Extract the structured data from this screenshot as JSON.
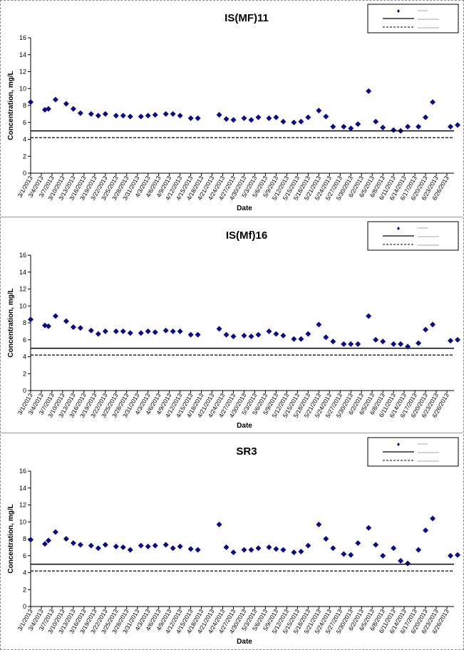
{
  "chart_data": [
    {
      "type": "scatter",
      "title": "IS(MF)11",
      "xlabel": "Date",
      "ylabel": "Concentration, mg/L",
      "ylim": [
        0,
        16
      ],
      "yticks": [
        0,
        2,
        4,
        6,
        8,
        10,
        12,
        14,
        16
      ],
      "grid": false,
      "legend_position": "top-right",
      "xlim": [
        "3/1/2013",
        "6/28/2013"
      ],
      "xtick_labels": [
        "3/1/2013",
        "3/4/2013",
        "3/7/2013",
        "3/10/2013",
        "3/13/2013",
        "3/16/2013",
        "3/19/2013",
        "3/22/2013",
        "3/25/2013",
        "3/28/2013",
        "3/31/2013",
        "4/3/2013",
        "4/6/2013",
        "4/9/2013",
        "4/12/2013",
        "4/15/2013",
        "4/18/2013",
        "4/21/2013",
        "4/24/2013",
        "4/27/2013",
        "4/30/2013",
        "5/3/2013",
        "5/6/2013",
        "5/9/2013",
        "5/12/2013",
        "5/15/2013",
        "5/18/2013",
        "5/21/2013",
        "5/24/2013",
        "5/27/2013",
        "5/30/2013",
        "6/2/2013",
        "6/5/2013",
        "6/8/2013",
        "6/11/2013",
        "6/14/2013",
        "6/17/2013",
        "6/20/2013",
        "6/23/2013",
        "6/26/2013"
      ],
      "series": [
        {
          "kind": "points",
          "marker": "diamond",
          "color": "#0a0a8c",
          "points": [
            [
              "3/1/2013",
              8.4
            ],
            [
              "3/5/2013",
              7.5
            ],
            [
              "3/6/2013",
              7.6
            ],
            [
              "3/8/2013",
              8.7
            ],
            [
              "3/11/2013",
              8.2
            ],
            [
              "3/13/2013",
              7.6
            ],
            [
              "3/15/2013",
              7.1
            ],
            [
              "3/18/2013",
              7.0
            ],
            [
              "3/20/2013",
              6.8
            ],
            [
              "3/22/2013",
              7.0
            ],
            [
              "3/25/2013",
              6.8
            ],
            [
              "3/27/2013",
              6.8
            ],
            [
              "3/29/2013",
              6.7
            ],
            [
              "4/1/2013",
              6.7
            ],
            [
              "4/3/2013",
              6.8
            ],
            [
              "4/5/2013",
              6.9
            ],
            [
              "4/8/2013",
              7.0
            ],
            [
              "4/10/2013",
              7.0
            ],
            [
              "4/12/2013",
              6.8
            ],
            [
              "4/15/2013",
              6.5
            ],
            [
              "4/17/2013",
              6.5
            ],
            [
              "4/23/2013",
              6.9
            ],
            [
              "4/25/2013",
              6.4
            ],
            [
              "4/27/2013",
              6.3
            ],
            [
              "4/30/2013",
              6.5
            ],
            [
              "5/2/2013",
              6.3
            ],
            [
              "5/4/2013",
              6.6
            ],
            [
              "5/7/2013",
              6.5
            ],
            [
              "5/9/2013",
              6.6
            ],
            [
              "5/11/2013",
              6.1
            ],
            [
              "5/14/2013",
              6.0
            ],
            [
              "5/16/2013",
              6.1
            ],
            [
              "5/18/2013",
              6.6
            ],
            [
              "5/21/2013",
              7.4
            ],
            [
              "5/23/2013",
              6.7
            ],
            [
              "5/25/2013",
              5.5
            ],
            [
              "5/28/2013",
              5.5
            ],
            [
              "5/30/2013",
              5.3
            ],
            [
              "6/1/2013",
              5.8
            ],
            [
              "6/4/2013",
              9.7
            ],
            [
              "6/6/2013",
              6.1
            ],
            [
              "6/8/2013",
              5.4
            ],
            [
              "6/11/2013",
              5.1
            ],
            [
              "6/13/2013",
              5.0
            ],
            [
              "6/15/2013",
              5.5
            ],
            [
              "6/18/2013",
              5.5
            ],
            [
              "6/20/2013",
              6.6
            ],
            [
              "6/22/2013",
              8.4
            ],
            [
              "6/27/2013",
              5.5
            ],
            [
              "6/29/2013",
              5.7
            ]
          ]
        },
        {
          "kind": "hline",
          "value": 5.0,
          "style": "solid",
          "color": "#000000"
        },
        {
          "kind": "hline",
          "value": 4.2,
          "style": "dashed",
          "color": "#000000"
        }
      ]
    },
    {
      "type": "scatter",
      "title": "IS(Mf)16",
      "xlabel": "Date",
      "ylabel": "Concentration, mg/L",
      "ylim": [
        0,
        16
      ],
      "yticks": [
        0,
        2,
        4,
        6,
        8,
        10,
        12,
        14,
        16
      ],
      "grid": false,
      "legend_position": "top-right",
      "xlim": [
        "3/1/2013",
        "6/28/2013"
      ],
      "xtick_labels": [
        "3/1/2013",
        "3/4/2013",
        "3/7/2013",
        "3/10/2013",
        "3/13/2013",
        "3/16/2013",
        "3/19/2013",
        "3/22/2013",
        "3/25/2013",
        "3/28/2013",
        "3/31/2013",
        "4/3/2013",
        "4/6/2013",
        "4/9/2013",
        "4/12/2013",
        "4/15/2013",
        "4/18/2013",
        "4/21/2013",
        "4/24/2013",
        "4/27/2013",
        "4/30/2013",
        "5/3/2013",
        "5/6/2013",
        "5/9/2013",
        "5/12/2013",
        "5/15/2013",
        "5/18/2013",
        "5/21/2013",
        "5/24/2013",
        "5/27/2013",
        "5/30/2013",
        "6/2/2013",
        "6/5/2013",
        "6/8/2013",
        "6/11/2013",
        "6/14/2013",
        "6/17/2013",
        "6/20/2013",
        "6/23/2013",
        "6/26/2013"
      ],
      "series": [
        {
          "kind": "points",
          "marker": "diamond",
          "color": "#0a0a8c",
          "points": [
            [
              "3/1/2013",
              8.4
            ],
            [
              "3/5/2013",
              7.7
            ],
            [
              "3/6/2013",
              7.6
            ],
            [
              "3/8/2013",
              8.8
            ],
            [
              "3/11/2013",
              8.2
            ],
            [
              "3/13/2013",
              7.5
            ],
            [
              "3/15/2013",
              7.4
            ],
            [
              "3/18/2013",
              7.1
            ],
            [
              "3/20/2013",
              6.7
            ],
            [
              "3/22/2013",
              7.0
            ],
            [
              "3/25/2013",
              7.0
            ],
            [
              "3/27/2013",
              7.0
            ],
            [
              "3/29/2013",
              6.8
            ],
            [
              "4/1/2013",
              6.8
            ],
            [
              "4/3/2013",
              7.0
            ],
            [
              "4/5/2013",
              6.9
            ],
            [
              "4/8/2013",
              7.1
            ],
            [
              "4/10/2013",
              7.0
            ],
            [
              "4/12/2013",
              7.0
            ],
            [
              "4/15/2013",
              6.6
            ],
            [
              "4/17/2013",
              6.6
            ],
            [
              "4/23/2013",
              7.3
            ],
            [
              "4/25/2013",
              6.6
            ],
            [
              "4/27/2013",
              6.4
            ],
            [
              "4/30/2013",
              6.5
            ],
            [
              "5/2/2013",
              6.4
            ],
            [
              "5/4/2013",
              6.6
            ],
            [
              "5/7/2013",
              7.0
            ],
            [
              "5/9/2013",
              6.7
            ],
            [
              "5/11/2013",
              6.5
            ],
            [
              "5/14/2013",
              6.1
            ],
            [
              "5/16/2013",
              6.1
            ],
            [
              "5/18/2013",
              6.7
            ],
            [
              "5/21/2013",
              7.8
            ],
            [
              "5/23/2013",
              6.3
            ],
            [
              "5/25/2013",
              5.8
            ],
            [
              "5/28/2013",
              5.5
            ],
            [
              "5/30/2013",
              5.5
            ],
            [
              "6/1/2013",
              5.5
            ],
            [
              "6/4/2013",
              8.8
            ],
            [
              "6/6/2013",
              6.0
            ],
            [
              "6/8/2013",
              5.8
            ],
            [
              "6/11/2013",
              5.5
            ],
            [
              "6/13/2013",
              5.5
            ],
            [
              "6/15/2013",
              5.2
            ],
            [
              "6/18/2013",
              5.6
            ],
            [
              "6/20/2013",
              7.2
            ],
            [
              "6/22/2013",
              7.8
            ],
            [
              "6/27/2013",
              5.9
            ],
            [
              "6/29/2013",
              6.0
            ]
          ]
        },
        {
          "kind": "hline",
          "value": 5.0,
          "style": "solid",
          "color": "#000000"
        },
        {
          "kind": "hline",
          "value": 4.2,
          "style": "dashed",
          "color": "#000000"
        }
      ]
    },
    {
      "type": "scatter",
      "title": "SR3",
      "xlabel": "Date",
      "ylabel": "Concentration, mg/L",
      "ylim": [
        0,
        16
      ],
      "yticks": [
        0,
        2,
        4,
        6,
        8,
        10,
        12,
        14,
        16
      ],
      "grid": false,
      "legend_position": "top-right",
      "xlim": [
        "3/1/2013",
        "6/28/2013"
      ],
      "xtick_labels": [
        "3/1/2013",
        "3/4/2013",
        "3/7/2013",
        "3/10/2013",
        "3/13/2013",
        "3/16/2013",
        "3/19/2013",
        "3/22/2013",
        "3/25/2013",
        "3/28/2013",
        "3/31/2013",
        "4/3/2013",
        "4/6/2013",
        "4/9/2013",
        "4/12/2013",
        "4/15/2013",
        "4/18/2013",
        "4/21/2013",
        "4/24/2013",
        "4/27/2013",
        "4/30/2013",
        "5/3/2013",
        "5/6/2013",
        "5/9/2013",
        "5/12/2013",
        "5/15/2013",
        "5/18/2013",
        "5/21/2013",
        "5/24/2013",
        "5/27/2013",
        "5/30/2013",
        "6/2/2013",
        "6/5/2013",
        "6/8/2013",
        "6/11/2013",
        "6/14/2013",
        "6/17/2013",
        "6/20/2013",
        "6/23/2013",
        "6/26/2013"
      ],
      "series": [
        {
          "kind": "points",
          "marker": "diamond",
          "color": "#0a0a8c",
          "points": [
            [
              "3/1/2013",
              7.9
            ],
            [
              "3/5/2013",
              7.4
            ],
            [
              "3/6/2013",
              7.8
            ],
            [
              "3/8/2013",
              8.8
            ],
            [
              "3/11/2013",
              8.0
            ],
            [
              "3/13/2013",
              7.5
            ],
            [
              "3/15/2013",
              7.3
            ],
            [
              "3/18/2013",
              7.2
            ],
            [
              "3/20/2013",
              6.9
            ],
            [
              "3/22/2013",
              7.3
            ],
            [
              "3/25/2013",
              7.1
            ],
            [
              "3/27/2013",
              7.0
            ],
            [
              "3/29/2013",
              6.7
            ],
            [
              "4/1/2013",
              7.2
            ],
            [
              "4/3/2013",
              7.1
            ],
            [
              "4/5/2013",
              7.2
            ],
            [
              "4/8/2013",
              7.3
            ],
            [
              "4/10/2013",
              6.9
            ],
            [
              "4/12/2013",
              7.1
            ],
            [
              "4/15/2013",
              6.8
            ],
            [
              "4/17/2013",
              6.7
            ],
            [
              "4/23/2013",
              9.7
            ],
            [
              "4/25/2013",
              7.0
            ],
            [
              "4/27/2013",
              6.4
            ],
            [
              "4/30/2013",
              6.7
            ],
            [
              "5/2/2013",
              6.7
            ],
            [
              "5/4/2013",
              6.9
            ],
            [
              "5/7/2013",
              7.0
            ],
            [
              "5/9/2013",
              6.8
            ],
            [
              "5/11/2013",
              6.7
            ],
            [
              "5/14/2013",
              6.4
            ],
            [
              "5/16/2013",
              6.5
            ],
            [
              "5/18/2013",
              7.2
            ],
            [
              "5/21/2013",
              9.7
            ],
            [
              "5/23/2013",
              8.0
            ],
            [
              "5/25/2013",
              6.9
            ],
            [
              "5/28/2013",
              6.2
            ],
            [
              "5/30/2013",
              6.1
            ],
            [
              "6/1/2013",
              7.5
            ],
            [
              "6/4/2013",
              9.3
            ],
            [
              "6/6/2013",
              7.3
            ],
            [
              "6/8/2013",
              6.0
            ],
            [
              "6/11/2013",
              6.9
            ],
            [
              "6/13/2013",
              5.4
            ],
            [
              "6/15/2013",
              5.1
            ],
            [
              "6/18/2013",
              6.7
            ],
            [
              "6/20/2013",
              9.0
            ],
            [
              "6/22/2013",
              10.4
            ],
            [
              "6/27/2013",
              6.0
            ],
            [
              "6/29/2013",
              6.1
            ]
          ]
        },
        {
          "kind": "hline",
          "value": 5.0,
          "style": "solid",
          "color": "#000000"
        },
        {
          "kind": "hline",
          "value": 4.2,
          "style": "dashed",
          "color": "#000000"
        }
      ]
    }
  ]
}
